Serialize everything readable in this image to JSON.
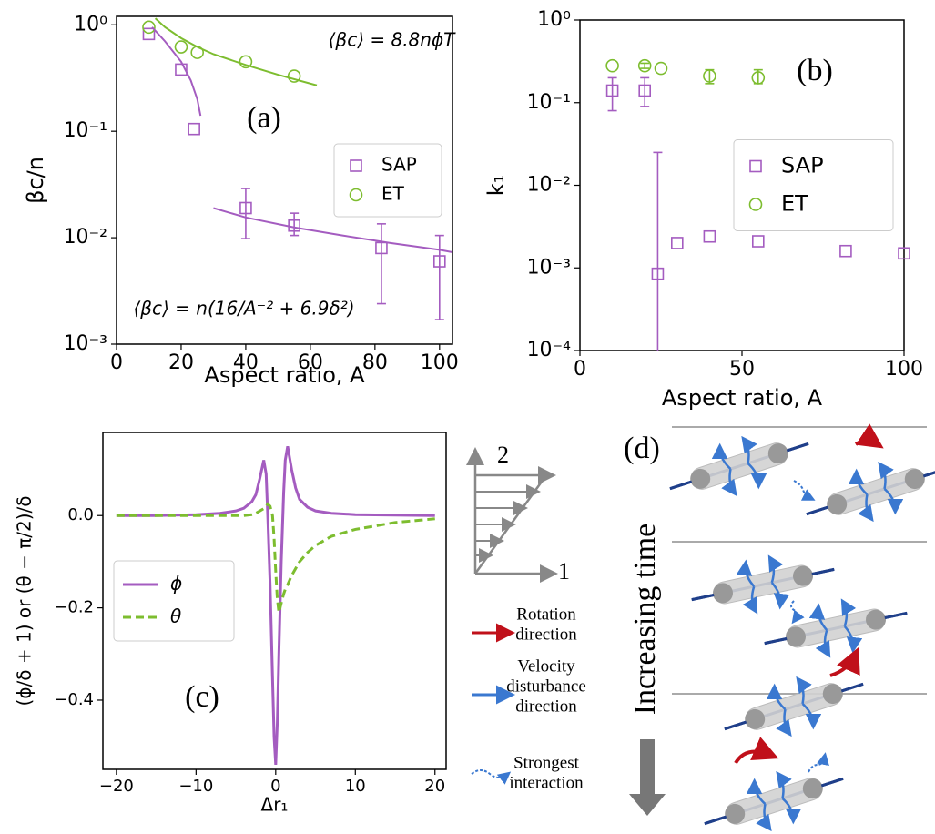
{
  "chart_data": [
    {
      "type": "scatter",
      "panel_label": "(a)",
      "ylabel": "βc/n",
      "xlabel": "Aspect ratio, A",
      "xlim": [
        0,
        104
      ],
      "ylim": [
        0.001,
        1.2
      ],
      "log_y": true,
      "xticks": [
        0,
        20,
        40,
        60,
        80,
        100
      ],
      "yticks": [
        {
          "value": 0.001,
          "label": "10⁻³"
        },
        {
          "value": 0.01,
          "label": "10⁻²"
        },
        {
          "value": 0.1,
          "label": "10⁻¹"
        },
        {
          "value": 1,
          "label": "10⁰"
        }
      ],
      "legend": "center right",
      "series": [
        {
          "name": "SAP",
          "color": "#a45cc0",
          "marker": "square",
          "x": [
            10,
            20,
            24,
            40,
            55,
            82,
            100
          ],
          "values": [
            0.82,
            0.38,
            0.105,
            0.019,
            0.013,
            0.008,
            0.006
          ],
          "error_lower": [
            null,
            null,
            null,
            0.0098,
            0.0105,
            0.0024,
            0.0017
          ],
          "error_upper": [
            null,
            null,
            null,
            0.029,
            0.017,
            0.0135,
            0.0105
          ]
        },
        {
          "name": "ET",
          "color": "#7dbd2f",
          "marker": "circle",
          "x": [
            10,
            20,
            25,
            40,
            55
          ],
          "values": [
            0.95,
            0.62,
            0.55,
            0.45,
            0.33
          ]
        },
        {
          "kind": "line",
          "color": "#7dbd2f",
          "x": [
            12,
            15,
            20,
            25,
            30,
            40,
            50,
            62
          ],
          "values": [
            1.15,
            0.95,
            0.75,
            0.62,
            0.53,
            0.42,
            0.34,
            0.27
          ]
        },
        {
          "kind": "line",
          "color": "#a45cc0",
          "x": [
            11,
            15,
            20,
            23,
            25,
            26
          ],
          "values": [
            0.95,
            0.7,
            0.45,
            0.3,
            0.2,
            0.14
          ]
        },
        {
          "kind": "line",
          "color": "#a45cc0",
          "x": [
            30,
            40,
            55,
            70,
            85,
            100,
            104
          ],
          "values": [
            0.019,
            0.0155,
            0.0125,
            0.0105,
            0.0089,
            0.0077,
            0.0073
          ]
        }
      ],
      "annotations": [
        {
          "text": "⟨βc⟩ = 8.8nϕT",
          "color": "#7dbd2f"
        },
        {
          "text": "⟨βc⟩ = n(16/A⁻² + 6.9δ²)",
          "color": "#a45cc0"
        }
      ]
    },
    {
      "type": "scatter",
      "panel_label": "(b)",
      "ylabel": "k₁",
      "xlabel": "Aspect ratio, A",
      "xlim": [
        0,
        100
      ],
      "ylim": [
        0.0001,
        1
      ],
      "log_y": true,
      "xticks": [
        0,
        50,
        100
      ],
      "yticks": [
        {
          "value": 0.0001,
          "label": "10⁻⁴"
        },
        {
          "value": 0.001,
          "label": "10⁻³"
        },
        {
          "value": 0.01,
          "label": "10⁻²"
        },
        {
          "value": 0.1,
          "label": "10⁻¹"
        },
        {
          "value": 1,
          "label": "10⁰"
        }
      ],
      "legend": "center right",
      "series": [
        {
          "name": "SAP",
          "color": "#a45cc0",
          "marker": "square",
          "x": [
            10,
            20,
            24,
            30,
            40,
            55,
            82,
            100
          ],
          "values": [
            0.14,
            0.14,
            0.00085,
            0.002,
            0.0024,
            0.0021,
            0.0016,
            0.0015
          ],
          "error_lower": [
            0.08,
            0.09,
            0.0001,
            null,
            null,
            null,
            null,
            null
          ],
          "error_upper": [
            0.2,
            0.2,
            0.025,
            null,
            null,
            null,
            null,
            null
          ]
        },
        {
          "name": "ET",
          "color": "#7dbd2f",
          "marker": "circle",
          "x": [
            10,
            20,
            25,
            40,
            55
          ],
          "values": [
            0.28,
            0.28,
            0.26,
            0.21,
            0.2
          ],
          "error_lower": [
            null,
            0.26,
            null,
            0.17,
            0.17
          ],
          "error_upper": [
            null,
            0.3,
            null,
            0.25,
            0.25
          ]
        }
      ]
    },
    {
      "type": "line",
      "panel_label": "(c)",
      "ylabel": "(ϕ/δ + 1) or (θ − π/2)/δ",
      "xlabel": "Δr₁",
      "xlim": [
        -21.7,
        21.4
      ],
      "ylim": [
        -0.55,
        0.18
      ],
      "xticks": [
        {
          "value": -20,
          "label": "−20"
        },
        {
          "value": -10,
          "label": "−10"
        },
        0,
        10,
        20
      ],
      "yticks": [
        {
          "value": -0.4,
          "label": "−0.4"
        },
        {
          "value": -0.2,
          "label": "−0.2"
        },
        {
          "value": 0,
          "label": "0.0"
        }
      ],
      "legend": "center left",
      "series": [
        {
          "name": "ϕ",
          "color": "#a45cc0",
          "style": "solid",
          "x": [
            -20,
            -15,
            -10,
            -7,
            -5,
            -4,
            -3,
            -2.5,
            -2,
            -1.5,
            -1.2,
            -1,
            -0.7,
            -0.4,
            -0.2,
            0,
            0.2,
            0.4,
            0.7,
            1,
            1.2,
            1.5,
            2,
            2.5,
            3,
            4,
            5,
            7,
            10,
            15,
            20
          ],
          "values": [
            0,
            0,
            0.002,
            0.005,
            0.01,
            0.016,
            0.03,
            0.045,
            0.08,
            0.12,
            0.09,
            0.0,
            -0.15,
            -0.35,
            -0.48,
            -0.54,
            -0.45,
            -0.3,
            -0.1,
            0.05,
            0.12,
            0.15,
            0.1,
            0.06,
            0.035,
            0.018,
            0.01,
            0.005,
            0.002,
            0.001,
            0
          ]
        },
        {
          "name": "θ",
          "color": "#7dbd2f",
          "style": "dashed",
          "x": [
            -20,
            -15,
            -10,
            -7,
            -5,
            -4,
            -3,
            -2.5,
            -2,
            -1.5,
            -1.2,
            -1,
            -0.7,
            -0.4,
            -0.2,
            0,
            0.2,
            0.4,
            0.7,
            1,
            1.2,
            1.5,
            2,
            2.5,
            3,
            4,
            5,
            7,
            10,
            15,
            20
          ],
          "values": [
            0,
            0,
            0,
            0,
            0,
            0,
            0.002,
            0.005,
            0.01,
            0.015,
            0.02,
            0.025,
            0.02,
            0.0,
            -0.05,
            -0.12,
            -0.18,
            -0.21,
            -0.19,
            -0.17,
            -0.16,
            -0.15,
            -0.13,
            -0.115,
            -0.1,
            -0.08,
            -0.065,
            -0.045,
            -0.03,
            -0.015,
            -0.007
          ]
        }
      ]
    }
  ],
  "diagram": {
    "shear_axes": [
      "2",
      "1"
    ],
    "panel_label": "(d)",
    "time_label": "Increasing time",
    "legend": [
      [
        "Rotation",
        "direction"
      ],
      [
        "Velocity",
        "disturbance",
        "direction"
      ],
      [
        "Strongest",
        "interaction"
      ]
    ]
  }
}
